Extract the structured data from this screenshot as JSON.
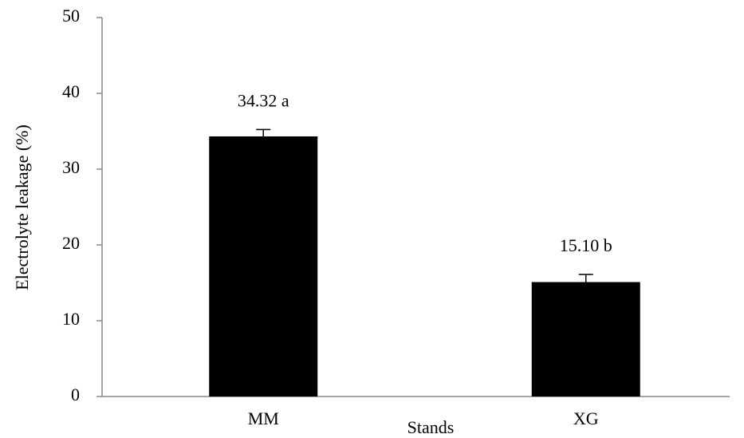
{
  "chart_data": {
    "type": "bar",
    "x_label": "Stands",
    "y_label": "Electrolyte leakage (%)",
    "categories": [
      "MM",
      "XG"
    ],
    "values": [
      34.32,
      15.1
    ],
    "value_labels": [
      "34.32 a",
      "15.10 b"
    ],
    "errors": [
      0.9,
      1.0
    ],
    "color": "#000000",
    "ylim": [
      0,
      50
    ],
    "yticks": [
      0,
      10,
      20,
      30,
      40,
      50
    ]
  }
}
